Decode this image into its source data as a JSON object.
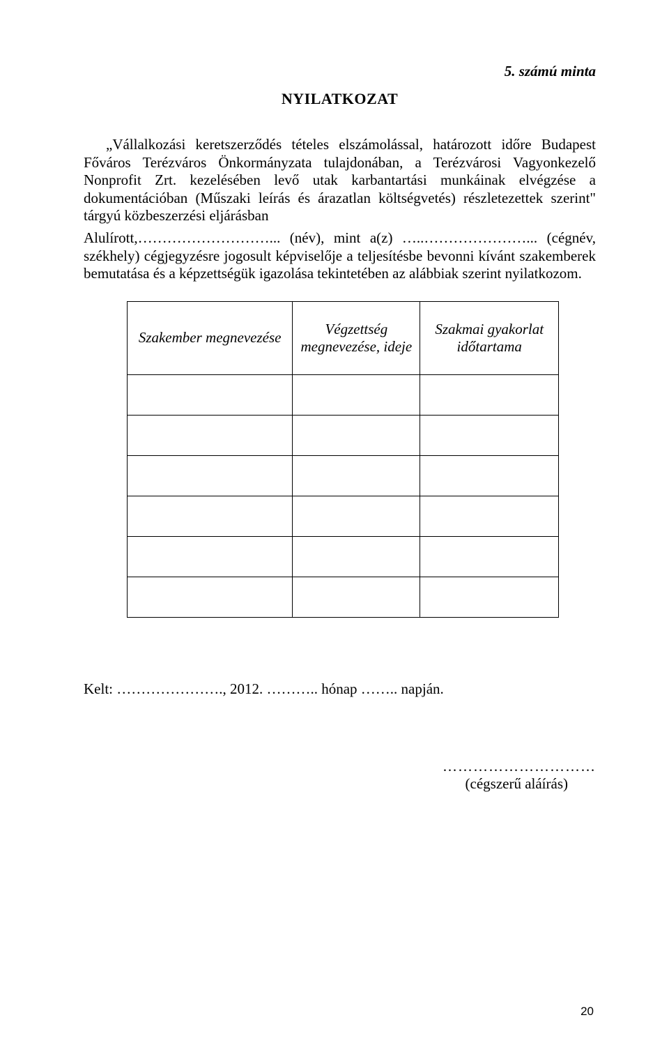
{
  "header": {
    "sample_label": "5. számú minta"
  },
  "title": "NYILATKOZAT",
  "paragraphs": {
    "p1": "„Vállalkozási keretszerződés tételes elszámolással, határozott időre Budapest Főváros Terézváros Önkormányzata tulajdonában, a Terézvárosi Vagyonkezelő Nonprofit Zrt. kezelésében levő utak karbantartási munkáinak elvégzése a dokumentációban (Műszaki leírás és árazatlan költségvetés) részletezettek szerint\" tárgyú közbeszerzési eljárásban",
    "p2": "Alulírott,………………………... (név), mint a(z) …..…………………... (cégnév, székhely) cégjegyzésre jogosult képviselője a teljesítésbe bevonni kívánt szakemberek bemutatása és a képzettségük igazolása tekintetében az alábbiak szerint nyilatkozom."
  },
  "table": {
    "columns": [
      "Szakember megnevezése",
      "Végzettség megnevezése, ideje",
      "Szakmai gyakorlat időtartama"
    ],
    "row_count": 6
  },
  "date_line": "Kelt: …………………., 2012. ……….. hónap …….. napján.",
  "signature": {
    "dots": "…………………………",
    "label": "(cégszerű aláírás)"
  },
  "page_number": "20"
}
